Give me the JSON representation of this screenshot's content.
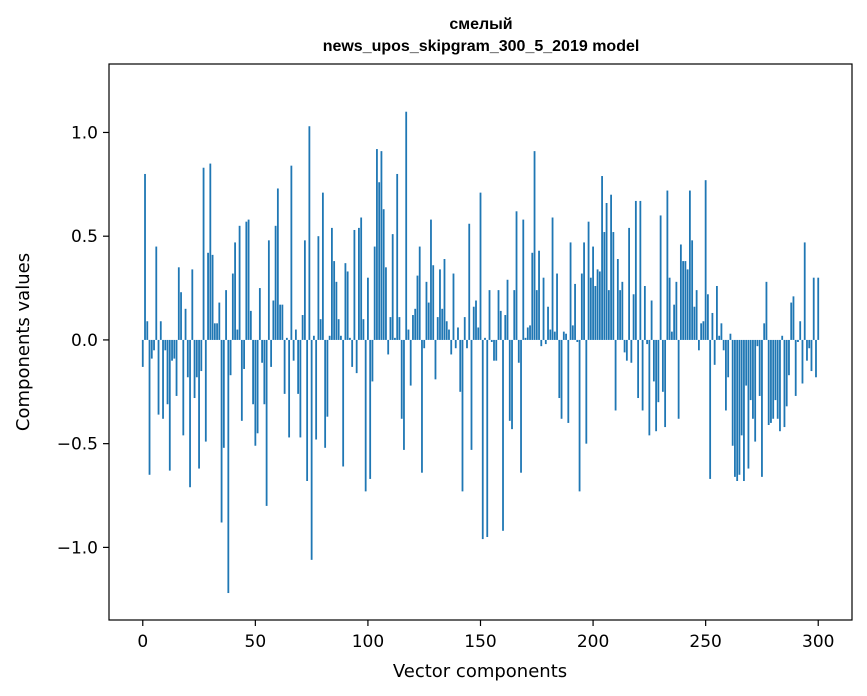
{
  "chart_data": {
    "type": "bar",
    "title": "смелый",
    "subtitle": "news_upos_skipgram_300_5_2019 model",
    "xlabel": "Vector components",
    "ylabel": "Components values",
    "xlim": [
      -15,
      315
    ],
    "ylim": [
      -1.35,
      1.33
    ],
    "xticks": [
      0,
      50,
      100,
      150,
      200,
      250,
      300
    ],
    "yticks": [
      -1.0,
      -0.5,
      0.0,
      0.5,
      1.0
    ],
    "ytick_labels": [
      "−1.0",
      "−0.5",
      "0.0",
      "0.5",
      "1.0"
    ],
    "grid": false,
    "bar_color": "#1f77b4",
    "values": [
      -0.13,
      0.8,
      0.09,
      -0.65,
      -0.09,
      -0.05,
      0.45,
      -0.36,
      0.09,
      -0.38,
      -0.05,
      -0.31,
      -0.63,
      -0.1,
      -0.09,
      -0.27,
      0.35,
      0.23,
      -0.46,
      0.15,
      -0.18,
      -0.71,
      0.34,
      -0.28,
      -0.18,
      -0.62,
      -0.15,
      0.83,
      -0.49,
      0.42,
      0.85,
      0.41,
      0.08,
      0.08,
      0.18,
      -0.88,
      -0.52,
      0.24,
      -1.22,
      -0.17,
      0.32,
      0.47,
      0.05,
      0.55,
      -0.39,
      -0.14,
      0.57,
      0.58,
      0.14,
      -0.31,
      -0.51,
      -0.45,
      0.25,
      -0.11,
      -0.31,
      -0.8,
      0.48,
      -0.13,
      0.19,
      0.55,
      0.73,
      0.17,
      0.17,
      -0.26,
      0.01,
      -0.47,
      0.84,
      -0.1,
      0.05,
      -0.26,
      -0.47,
      0.12,
      0.48,
      -0.68,
      1.03,
      -1.06,
      0.02,
      -0.48,
      0.5,
      0.1,
      0.71,
      -0.52,
      -0.37,
      0.02,
      0.54,
      0.38,
      0.28,
      0.1,
      0.02,
      -0.61,
      0.37,
      0.33,
      0.01,
      -0.13,
      0.53,
      -0.16,
      0.54,
      0.59,
      0.1,
      -0.73,
      0.3,
      -0.67,
      -0.2,
      0.45,
      0.92,
      0.76,
      0.91,
      0.63,
      0.35,
      -0.07,
      0.11,
      0.51,
      0.01,
      0.8,
      0.11,
      -0.38,
      -0.53,
      1.1,
      0.05,
      -0.22,
      0.12,
      0.15,
      0.31,
      0.45,
      -0.64,
      -0.04,
      0.28,
      0.18,
      0.58,
      0.36,
      -0.19,
      0.11,
      0.34,
      0.15,
      0.39,
      0.09,
      0.05,
      -0.07,
      0.32,
      -0.04,
      0.06,
      -0.25,
      -0.73,
      0.11,
      -0.04,
      0.56,
      -0.53,
      0.16,
      0.19,
      0.06,
      0.71,
      -0.96,
      0.01,
      -0.95,
      0.24,
      -0.01,
      -0.1,
      -0.1,
      0.24,
      0.14,
      -0.92,
      0.12,
      0.29,
      -0.39,
      -0.43,
      0.24,
      0.62,
      -0.11,
      -0.64,
      0.58,
      0.01,
      0.06,
      0.07,
      0.42,
      0.91,
      0.24,
      0.43,
      -0.03,
      0.3,
      -0.02,
      0.16,
      0.05,
      0.59,
      0.04,
      0.32,
      -0.28,
      -0.38,
      0.04,
      0.03,
      -0.4,
      0.47,
      0.07,
      0.27,
      -0.01,
      -0.73,
      0.32,
      0.47,
      -0.5,
      0.57,
      0.3,
      0.45,
      0.26,
      0.34,
      0.33,
      0.79,
      0.52,
      0.66,
      0.24,
      0.7,
      0.52,
      -0.34,
      0.39,
      0.24,
      0.28,
      -0.06,
      -0.1,
      0.54,
      -0.11,
      0.22,
      0.67,
      -0.28,
      0.67,
      -0.34,
      0.26,
      -0.02,
      -0.46,
      0.19,
      -0.2,
      -0.44,
      -0.3,
      0.6,
      -0.25,
      -0.42,
      0.72,
      0.3,
      0.04,
      0.17,
      0.28,
      -0.38,
      0.46,
      0.38,
      0.38,
      0.34,
      0.72,
      0.48,
      0.16,
      0.24,
      -0.05,
      0.08,
      0.09,
      0.77,
      0.22,
      -0.67,
      0.13,
      -0.12,
      0.26,
      0.02,
      0.08,
      -0.05,
      -0.34,
      -0.18,
      0.03,
      -0.51,
      -0.66,
      -0.68,
      -0.65,
      -0.46,
      -0.68,
      -0.22,
      -0.62,
      -0.29,
      -0.38,
      -0.49,
      -0.03,
      -0.27,
      -0.66,
      0.08,
      0.28,
      -0.41,
      -0.4,
      -0.38,
      -0.29,
      -0.38,
      -0.44,
      0.02,
      -0.42,
      -0.32,
      -0.17,
      0.18,
      0.21,
      -0.27,
      -0.01,
      0.09,
      -0.21,
      0.47,
      -0.1,
      -0.04,
      -0.15,
      0.3,
      -0.18,
      0.3
    ]
  }
}
